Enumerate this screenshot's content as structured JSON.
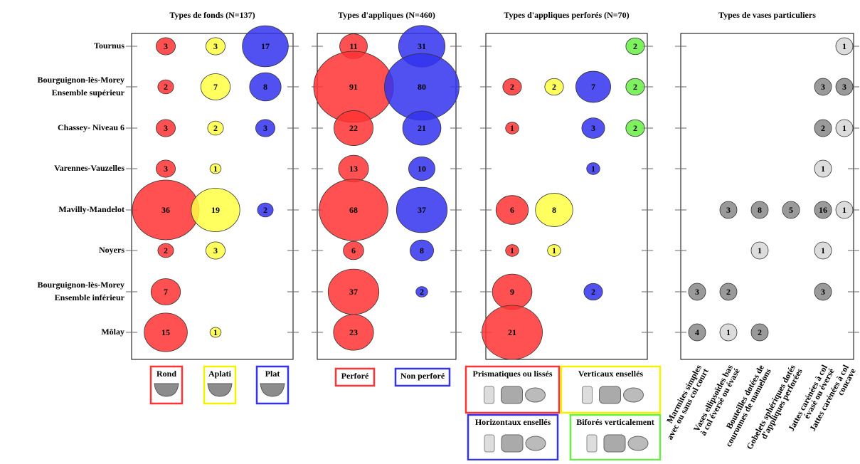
{
  "chart_data": [
    {
      "type": "bubble",
      "title": "Types de fonds (N=137)",
      "categories": [
        "Tournus",
        [
          "Bourguignon-lès-Morey",
          "Ensemble supérieur"
        ],
        "Chassey- Niveau 6",
        "Varennes-Vauzelles",
        "Mavilly-Mandelot",
        "Noyers",
        [
          "Bourguignon-lès-Morey",
          "Ensemble inférieur"
        ],
        "Môlay"
      ],
      "series": [
        {
          "name": "Rond",
          "color": "#ff3333",
          "values": [
            3,
            2,
            3,
            3,
            36,
            2,
            7,
            15
          ]
        },
        {
          "name": "Aplati",
          "color": "#ffff44",
          "values": [
            3,
            7,
            2,
            1,
            19,
            3,
            null,
            1
          ]
        },
        {
          "name": "Plat",
          "color": "#3333ee",
          "values": [
            17,
            8,
            3,
            null,
            2,
            null,
            null,
            null
          ]
        }
      ]
    },
    {
      "type": "bubble",
      "title": "Types d'appliques (N=460)",
      "series": [
        {
          "name": "Perforé",
          "color": "#ff3333",
          "values": [
            11,
            91,
            22,
            13,
            68,
            6,
            37,
            23
          ]
        },
        {
          "name": "Non perforé",
          "color": "#3333ee",
          "values": [
            31,
            80,
            21,
            10,
            37,
            8,
            2,
            null
          ]
        }
      ]
    },
    {
      "type": "bubble",
      "title": "Types d'appliques perforés (N=70)",
      "series": [
        {
          "name": "Prismatiques ou lissés",
          "color": "#ff3333",
          "values": [
            null,
            2,
            1,
            null,
            6,
            1,
            9,
            21
          ]
        },
        {
          "name": "Verticaux ensellés",
          "color": "#ffff44",
          "values": [
            null,
            2,
            null,
            null,
            8,
            1,
            null,
            null
          ]
        },
        {
          "name": "Horizontaux ensellés",
          "color": "#3333ee",
          "values": [
            null,
            7,
            3,
            1,
            null,
            null,
            2,
            null
          ]
        },
        {
          "name": "Biforés verticalement",
          "color": "#66ee44",
          "values": [
            2,
            2,
            2,
            null,
            null,
            null,
            null,
            null
          ]
        }
      ]
    },
    {
      "type": "count",
      "title": "Types de vases particuliers",
      "unit_color": "#dcdcdc",
      "series": [
        {
          "name": [
            "Marmites simples",
            "avec ou sans col court"
          ],
          "color": "#9a9a9a",
          "values": [
            null,
            null,
            null,
            null,
            null,
            null,
            3,
            4
          ]
        },
        {
          "name": [
            "Vases ellipsoïdes bas",
            "à col éversé ou évasé"
          ],
          "color": "#9a9a9a",
          "values": [
            null,
            null,
            null,
            null,
            3,
            null,
            2,
            1
          ]
        },
        {
          "name": [
            "Bouteilles dotées de",
            "couronnes de mamelons"
          ],
          "color": "#9a9a9a",
          "values": [
            null,
            null,
            null,
            null,
            8,
            1,
            null,
            2
          ]
        },
        {
          "name": [
            "Gobelets sphériques dotés",
            "d'appliques perforées"
          ],
          "color": "#9a9a9a",
          "values": [
            null,
            null,
            null,
            null,
            5,
            null,
            null,
            null
          ]
        },
        {
          "name": [
            "Jattes carénées à col",
            "évasé ou éversé"
          ],
          "color": "#9a9a9a",
          "values": [
            null,
            3,
            2,
            1,
            16,
            1,
            3,
            null
          ]
        },
        {
          "name": [
            "Jattes carénées à col",
            "concave"
          ],
          "color": "#9a9a9a",
          "values": [
            1,
            3,
            1,
            null,
            1,
            null,
            null,
            null
          ]
        }
      ]
    }
  ]
}
